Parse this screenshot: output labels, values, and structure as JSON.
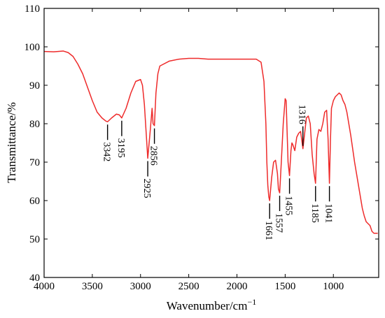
{
  "chart_data": {
    "type": "line",
    "xlabel": "Wavenumber/cm",
    "xlabel_superscript": "−1",
    "ylabel": "Transmittance/%",
    "xlim": [
      4000,
      530
    ],
    "ylim": [
      40,
      110
    ],
    "x_ticks": [
      4000,
      3500,
      3000,
      2500,
      2000,
      1500,
      1000
    ],
    "y_ticks": [
      40,
      50,
      60,
      70,
      80,
      90,
      100,
      110
    ],
    "x_reversed": true,
    "grid": false,
    "legend": "none",
    "series": [
      {
        "color": "#ee2b2b",
        "x": [
          4000,
          3900,
          3800,
          3750,
          3700,
          3650,
          3600,
          3550,
          3500,
          3450,
          3400,
          3360,
          3342,
          3300,
          3250,
          3220,
          3195,
          3150,
          3100,
          3050,
          3000,
          2980,
          2960,
          2940,
          2925,
          2900,
          2880,
          2870,
          2856,
          2840,
          2820,
          2800,
          2700,
          2600,
          2500,
          2400,
          2300,
          2200,
          2100,
          2000,
          1900,
          1800,
          1750,
          1720,
          1700,
          1690,
          1680,
          1670,
          1661,
          1640,
          1620,
          1600,
          1580,
          1570,
          1557,
          1540,
          1520,
          1500,
          1490,
          1480,
          1470,
          1455,
          1440,
          1430,
          1420,
          1400,
          1380,
          1360,
          1340,
          1316,
          1300,
          1280,
          1260,
          1240,
          1220,
          1200,
          1185,
          1170,
          1150,
          1130,
          1110,
          1090,
          1070,
          1055,
          1041,
          1030,
          1020,
          1000,
          980,
          960,
          940,
          920,
          900,
          880,
          860,
          840,
          820,
          800,
          780,
          760,
          740,
          720,
          700,
          680,
          660,
          640,
          620,
          600,
          580,
          560,
          540
        ],
        "y": [
          98.8,
          98.7,
          98.9,
          98.5,
          97.5,
          95.5,
          93,
          89.5,
          86,
          83,
          81.5,
          80.7,
          80.5,
          81.5,
          82.5,
          82.3,
          81.5,
          84,
          88,
          91,
          91.5,
          90,
          85,
          77,
          71,
          78,
          84,
          80,
          79.5,
          88,
          93,
          95,
          96.3,
          96.8,
          97,
          97,
          96.8,
          96.8,
          96.8,
          96.8,
          96.8,
          96.8,
          96,
          91,
          80,
          70,
          64,
          61,
          60,
          66,
          70,
          70.5,
          67,
          63,
          62,
          70,
          80,
          86.5,
          86,
          78,
          70,
          66.5,
          73,
          75,
          74.5,
          73,
          76.5,
          77.5,
          78,
          73.5,
          77,
          81.5,
          82,
          80,
          72,
          67,
          64.5,
          76,
          78.5,
          78,
          80,
          83,
          83.5,
          76,
          64.5,
          76,
          84,
          86,
          87,
          87.5,
          88,
          87.5,
          86,
          85,
          83,
          80,
          77,
          73.5,
          70,
          67,
          64,
          61,
          58,
          56,
          54.5,
          54,
          53.5,
          52,
          51.5,
          51.5,
          51.5
        ]
      }
    ],
    "annotations": [
      {
        "label": "3342",
        "x": 3342,
        "y_point": 80.5,
        "direction": "down"
      },
      {
        "label": "3195",
        "x": 3195,
        "y_point": 81.5,
        "direction": "down"
      },
      {
        "label": "2925",
        "x": 2925,
        "y_point": 71,
        "direction": "down"
      },
      {
        "label": "2856",
        "x": 2856,
        "y_point": 79.5,
        "direction": "down"
      },
      {
        "label": "1661",
        "x": 1661,
        "y_point": 60,
        "direction": "down"
      },
      {
        "label": "1557",
        "x": 1557,
        "y_point": 62,
        "direction": "down"
      },
      {
        "label": "1455",
        "x": 1455,
        "y_point": 66.5,
        "direction": "down"
      },
      {
        "label": "1316",
        "x": 1316,
        "y_point": 73.5,
        "direction": "up"
      },
      {
        "label": "1185",
        "x": 1185,
        "y_point": 64.5,
        "direction": "down"
      },
      {
        "label": "1041",
        "x": 1041,
        "y_point": 64.5,
        "direction": "down"
      }
    ]
  }
}
